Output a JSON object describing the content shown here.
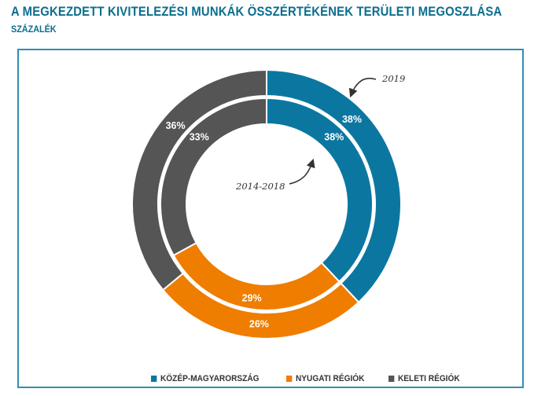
{
  "title": "A MEGKEZDETT KIVITELEZÉSI MUNKÁK ÖSSZÉRTÉKÉNEK TERÜLETI MEGOSZLÁSA",
  "subtitle": "SZÁZALÉK",
  "colors": {
    "kozep": "#0b77a1",
    "nyugati": "#ef7d00",
    "keleti": "#555555",
    "frame": "#2f8fb3"
  },
  "chart_data": {
    "type": "pie",
    "variant": "nested-donut",
    "categories": [
      "KÖZÉP-MAGYARORSZÁG",
      "NYUGATI RÉGIÓK",
      "KELETI RÉGIÓK"
    ],
    "series": [
      {
        "name": "2019",
        "ring": "outer",
        "values": [
          38,
          26,
          36
        ],
        "labels": [
          "38%",
          "26%",
          "36%"
        ]
      },
      {
        "name": "2014-2018",
        "ring": "inner",
        "values": [
          38,
          29,
          33
        ],
        "labels": [
          "38%",
          "29%",
          "33%"
        ]
      }
    ],
    "annotations": [
      "2019",
      "2014-2018"
    ],
    "legend_position": "bottom"
  }
}
